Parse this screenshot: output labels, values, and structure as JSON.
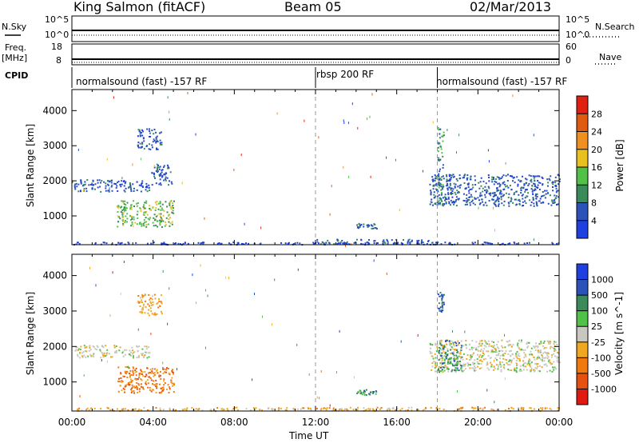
{
  "header": {
    "site": "King Salmon (fitACF)",
    "beam": "Beam 05",
    "date": "02/Mar/2013"
  },
  "strips": {
    "nsky_label": "N.Sky",
    "nsky_tick_top": "10^5",
    "nsky_tick_bot": "10^0",
    "nsearch_label": "N.Search",
    "nsearch_tick_top": "10^5",
    "nsearch_tick_bot": "10^0",
    "freq_label_1": "Freq.",
    "freq_label_2": "[MHz]",
    "freq_tick_top": "18",
    "freq_tick_bot": "8",
    "nave_label": "Nave",
    "nave_tick_top": "60",
    "nave_tick_bot": "0",
    "cpid_label": "CPID",
    "cpid_segments": [
      {
        "label": "normalsound (fast) -157 RF",
        "start": 0,
        "end": 12
      },
      {
        "label": "rbsp 200 RF",
        "start": 12,
        "end": 18
      },
      {
        "label": "normalsound (fast) -157 RF",
        "start": 18,
        "end": 24
      }
    ]
  },
  "colors": {
    "power": [
      "#1f3fe0",
      "#2a52b8",
      "#3b8a5a",
      "#52c14a",
      "#e8c020",
      "#f09020",
      "#e05a10",
      "#e02010"
    ],
    "velocity": [
      "#e01a10",
      "#e65010",
      "#f07a10",
      "#f0a820",
      "#c8c8c0",
      "#52c14a",
      "#3b8a5a",
      "#2a52b8",
      "#1f3fe0"
    ]
  },
  "chart_data": [
    {
      "type": "heatmap",
      "name": "power",
      "x_label": "",
      "y_label": "Slant Range [km]",
      "x_range_hours": [
        0,
        24
      ],
      "y_range_km": [
        180,
        4600
      ],
      "y_ticks": [
        1000,
        2000,
        3000,
        4000
      ],
      "colorbar_label": "Power [dB]",
      "colorbar_ticks": [
        "4",
        "8",
        "12",
        "16",
        "20",
        "24",
        "28"
      ],
      "regions": [
        {
          "t0": 0.1,
          "t1": 3.8,
          "r0": 1700,
          "r1": 2050,
          "level": 1
        },
        {
          "t0": 2.2,
          "t1": 5.0,
          "r0": 700,
          "r1": 1450,
          "level": 3
        },
        {
          "t0": 3.2,
          "t1": 4.4,
          "r0": 2900,
          "r1": 3500,
          "level": 1
        },
        {
          "t0": 3.9,
          "t1": 4.9,
          "r0": 1900,
          "r1": 2500,
          "level": 1
        },
        {
          "t0": 17.6,
          "t1": 24.0,
          "r0": 1300,
          "r1": 2200,
          "level": 1
        },
        {
          "t0": 18.0,
          "t1": 18.3,
          "r0": 1300,
          "r1": 3550,
          "level": 2
        },
        {
          "t0": 12.0,
          "t1": 18.0,
          "r0": 200,
          "r1": 350,
          "level": 1
        },
        {
          "t0": 14.0,
          "t1": 15.0,
          "r0": 650,
          "r1": 800,
          "level": 1
        },
        {
          "t0": 0.0,
          "t1": 24.0,
          "r0": 200,
          "r1": 270,
          "level": 0
        }
      ]
    },
    {
      "type": "heatmap",
      "name": "velocity",
      "x_label": "Time UT",
      "y_label": "Slant Range [km]",
      "x_range_hours": [
        0,
        24
      ],
      "y_range_km": [
        180,
        4600
      ],
      "y_ticks": [
        1000,
        2000,
        3000,
        4000
      ],
      "x_ticks": [
        "00:00",
        "04:00",
        "08:00",
        "12:00",
        "16:00",
        "20:00",
        "00:00"
      ],
      "colorbar_label": "Velocity [m s^-1]",
      "colorbar_ticks": [
        "1000",
        "500",
        "100",
        "25",
        "-25",
        "-100",
        "-500",
        "-1000"
      ],
      "regions": [
        {
          "t0": 0.1,
          "t1": 3.8,
          "r0": 1700,
          "r1": 2050,
          "level": 4
        },
        {
          "t0": 2.2,
          "t1": 5.0,
          "r0": 700,
          "r1": 1450,
          "level": 2
        },
        {
          "t0": 3.2,
          "t1": 4.4,
          "r0": 2900,
          "r1": 3500,
          "level": 3
        },
        {
          "t0": 17.6,
          "t1": 24.0,
          "r0": 1300,
          "r1": 2200,
          "level": 4
        },
        {
          "t0": 18.0,
          "t1": 19.2,
          "r0": 1300,
          "r1": 2200,
          "level": 6
        },
        {
          "t0": 18.0,
          "t1": 18.3,
          "r0": 3000,
          "r1": 3550,
          "level": 7
        },
        {
          "t0": 14.0,
          "t1": 15.0,
          "r0": 650,
          "r1": 800,
          "level": 6
        },
        {
          "t0": 0.0,
          "t1": 24.0,
          "r0": 200,
          "r1": 300,
          "level": 3
        }
      ]
    }
  ]
}
